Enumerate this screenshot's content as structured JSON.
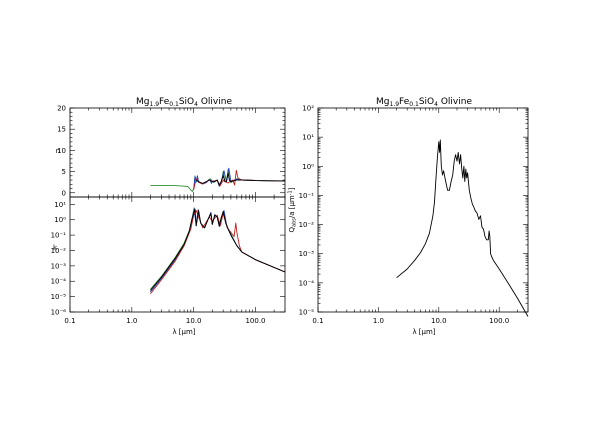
{
  "chart_data": [
    {
      "type": "line",
      "title": "Mg1.9Fe0.1SiO4 Olivine",
      "title_parts": {
        "main": "Mg",
        "sub1": "1.9",
        "mid": "Fe",
        "sub2": "0.1",
        "tail": "SiO",
        "sub3": "4",
        "end": " Olivine"
      },
      "xlabel": "λ [μm]",
      "xscale": "log",
      "xlim": [
        0.1,
        300
      ],
      "xticks": [
        "0.1",
        "1.0",
        "10.0",
        "100.0"
      ],
      "panels": [
        {
          "ylabel": "n",
          "yscale": "linear",
          "ylim": [
            -1,
            20
          ],
          "yticks": [
            "0",
            "5",
            "10",
            "15",
            "20"
          ],
          "series": [
            {
              "color": "#2e8b2e",
              "x": [
                2,
                5,
                8,
                9.5,
                10,
                10.5,
                11,
                11.5,
                12,
                14,
                16,
                18,
                19,
                19.5,
                20,
                21,
                22,
                24,
                26,
                28,
                30,
                32,
                34,
                36,
                38,
                40,
                45,
                50,
                60,
                100,
                300
              ],
              "y": [
                1.7,
                1.7,
                1.5,
                0.3,
                0.9,
                4.0,
                2.5,
                3.8,
                2.6,
                2.1,
                2.4,
                3.1,
                3.3,
                2.3,
                2.8,
                2.4,
                2.6,
                3.0,
                1.5,
                2.4,
                5.0,
                2.6,
                2.6,
                5.5,
                3.0,
                2.4,
                3.0,
                3.3,
                3.0,
                2.9,
                2.8
              ]
            },
            {
              "color": "#2040c0",
              "x": [
                10,
                10.5,
                11,
                11.5,
                12,
                14,
                16,
                18,
                19.5,
                20,
                22,
                24,
                26,
                28,
                31,
                34,
                37,
                40,
                50,
                60,
                100,
                300
              ],
              "y": [
                0.8,
                3.8,
                2.6,
                4.0,
                2.5,
                2.1,
                2.4,
                3.2,
                2.2,
                2.8,
                2.6,
                3.0,
                1.6,
                2.6,
                5.2,
                2.6,
                5.8,
                2.7,
                3.2,
                3.0,
                2.9,
                2.8
              ]
            },
            {
              "color": "#c02020",
              "x": [
                10,
                11,
                12,
                14,
                18,
                20,
                24,
                27,
                30,
                32,
                36,
                40,
                43,
                46,
                49,
                52,
                56,
                60,
                100,
                300
              ],
              "y": [
                0.8,
                3.3,
                2.5,
                2.1,
                3.0,
                2.7,
                2.9,
                1.7,
                3.0,
                2.6,
                2.3,
                2.8,
                3.0,
                1.8,
                5.3,
                3.5,
                3.2,
                3.0,
                2.9,
                2.8
              ]
            },
            {
              "color": "#000000",
              "x": [
                11,
                12,
                14,
                18,
                20,
                22,
                24,
                26,
                28,
                30,
                32,
                34,
                36,
                38,
                40,
                50,
                60,
                100,
                300
              ],
              "y": [
                3.0,
                2.6,
                2.2,
                3.0,
                2.7,
                2.7,
                3.0,
                1.8,
                2.7,
                4.0,
                2.7,
                2.7,
                4.6,
                2.9,
                2.6,
                3.0,
                3.0,
                2.9,
                2.8
              ]
            }
          ]
        },
        {
          "ylabel": "k",
          "yscale": "log",
          "ylim": [
            1e-06,
            30
          ],
          "yticks": [
            "10⁻⁶",
            "10⁻⁵",
            "10⁻⁴",
            "10⁻³",
            "10⁻²",
            "10⁻¹",
            "10⁰",
            "10¹"
          ],
          "series": [
            {
              "color": "#2e8b2e",
              "x": [
                2,
                3,
                5,
                7,
                8.5,
                9.5,
                10.2,
                11,
                11.8,
                13,
                15,
                17,
                19,
                20,
                22,
                24,
                26,
                28,
                30,
                33,
                35,
                40,
                50,
                60,
                100,
                300
              ],
              "y": [
                3e-05,
                0.0002,
                0.0035,
                0.03,
                0.2,
                1.5,
                6,
                0.5,
                4,
                0.6,
                0.3,
                1,
                2.5,
                0.5,
                2,
                1.5,
                0.4,
                1.5,
                3,
                0.8,
                0.3,
                0.12,
                0.02,
                0.008,
                0.0025,
                0.0004
              ]
            },
            {
              "color": "#2040c0",
              "x": [
                2,
                3,
                5,
                7,
                8.5,
                9.5,
                10.2,
                11,
                11.8,
                13,
                15,
                17,
                19,
                20,
                22,
                24,
                26,
                28,
                31,
                34,
                37,
                40,
                50,
                60,
                100,
                300
              ],
              "y": [
                2e-05,
                0.00015,
                0.0025,
                0.022,
                0.16,
                1.2,
                5,
                0.4,
                4.5,
                0.6,
                0.3,
                1,
                3,
                0.5,
                2.2,
                1.5,
                0.35,
                1.2,
                4,
                0.5,
                0.2,
                0.1,
                0.02,
                0.008,
                0.0025,
                0.0004
              ]
            },
            {
              "color": "#c02020",
              "x": [
                2,
                3,
                5,
                7,
                9,
                10,
                11,
                12,
                14,
                18,
                20,
                24,
                27,
                30,
                35,
                40,
                45,
                48,
                50,
                55,
                60,
                100,
                300
              ],
              "y": [
                1.5e-05,
                0.00012,
                0.002,
                0.02,
                0.25,
                2,
                4,
                1.5,
                0.3,
                1.5,
                0.8,
                2,
                0.4,
                2.5,
                0.3,
                0.15,
                0.08,
                0.6,
                0.15,
                0.02,
                0.008,
                0.0025,
                0.0004
              ]
            },
            {
              "color": "#000000",
              "x": [
                2,
                3,
                5,
                7,
                8.5,
                9.5,
                10.5,
                11,
                12,
                13,
                15,
                17,
                19,
                20,
                22,
                24,
                26,
                28,
                30,
                33,
                36,
                40,
                50,
                60,
                100,
                300
              ],
              "y": [
                2.5e-05,
                0.00018,
                0.003,
                0.025,
                0.18,
                1.3,
                5,
                0.4,
                4,
                0.6,
                0.3,
                1,
                2.6,
                0.5,
                2,
                1.5,
                0.4,
                1.4,
                3.5,
                0.6,
                0.25,
                0.1,
                0.02,
                0.008,
                0.0025,
                0.0004
              ]
            }
          ]
        }
      ]
    },
    {
      "type": "line",
      "title": "Mg1.9Fe0.1SiO4 Olivine",
      "title_parts": {
        "main": "Mg",
        "sub1": "1.9",
        "mid": "Fe",
        "sub2": "0.1",
        "tail": "SiO",
        "sub3": "4",
        "end": " Olivine"
      },
      "xlabel": "λ [μm]",
      "ylabel": "Qabs/a [μm⁻¹]",
      "ylabel_parts": {
        "main": "Q",
        "sub": "abs",
        "rest": "/a [μm",
        "sup": "-1",
        "end": "]"
      },
      "xscale": "log",
      "yscale": "log",
      "xlim": [
        0.1,
        300
      ],
      "ylim": [
        1e-05,
        100
      ],
      "xticks": [
        "0.1",
        "1.0",
        "10.0",
        "100.0"
      ],
      "yticks": [
        "10⁻⁵",
        "10⁻⁴",
        "10⁻³",
        "10⁻²",
        "10⁻¹",
        "10⁰",
        "10¹",
        "10²"
      ],
      "series": [
        {
          "color": "#000000",
          "x": [
            2,
            3,
            4,
            5,
            6,
            7,
            8,
            8.5,
            9,
            9.5,
            10,
            10.3,
            10.6,
            11,
            11.5,
            12,
            13,
            14,
            15,
            16,
            17,
            18,
            19,
            20,
            21,
            22,
            23,
            24,
            25,
            26,
            27,
            28,
            29,
            30,
            32,
            34,
            36,
            38,
            40,
            43,
            46,
            49,
            52,
            55,
            58,
            62,
            66,
            68,
            70,
            72,
            75,
            80,
            100,
            150,
            200,
            300
          ],
          "y": [
            0.00015,
            0.0003,
            0.0006,
            0.0011,
            0.0022,
            0.005,
            0.02,
            0.06,
            0.4,
            2,
            7,
            3,
            8,
            1,
            0.5,
            0.7,
            0.3,
            0.15,
            0.15,
            0.3,
            0.5,
            1.5,
            2.5,
            1.5,
            3,
            1.2,
            2.5,
            0.8,
            0.4,
            1.0,
            0.3,
            0.8,
            0.4,
            0.6,
            0.15,
            0.08,
            0.05,
            0.04,
            0.03,
            0.025,
            0.015,
            0.02,
            0.008,
            0.007,
            0.004,
            0.003,
            0.003,
            0.006,
            0.004,
            0.001,
            0.0008,
            0.0006,
            0.0003,
            8e-05,
            3e-05,
            7e-06
          ]
        }
      ]
    }
  ]
}
